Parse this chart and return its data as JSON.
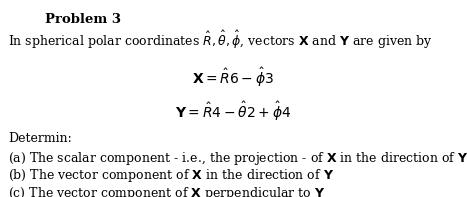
{
  "title": "Problem 3",
  "intro": "In spherical polar coordinates $\\hat{R}, \\hat{\\theta}, \\hat{\\phi}$, vectors $\\mathbf{X}$ and $\\mathbf{Y}$ are given by",
  "eq1": "$\\mathbf{X} = \\hat{R}6 - \\hat{\\phi}3$",
  "eq2": "$\\mathbf{Y} = \\hat{R}4 - \\hat{\\theta}2 + \\hat{\\phi}4$",
  "determin": "Determin:",
  "part_a": "(a) The scalar component - i.e., the projection - of $\\mathbf{X}$ in the direction of $\\mathbf{Y}$ ,",
  "part_b": "(b) The vector component of $\\mathbf{X}$ in the direction of $\\mathbf{Y}$",
  "part_c": "(c) The vector component of $\\mathbf{X}$ perpendicular to $\\mathbf{Y}$",
  "bg_color": "#ffffff",
  "text_color": "#000000",
  "title_fontsize": 9.5,
  "body_fontsize": 9.0,
  "eq_fontsize": 10.0
}
